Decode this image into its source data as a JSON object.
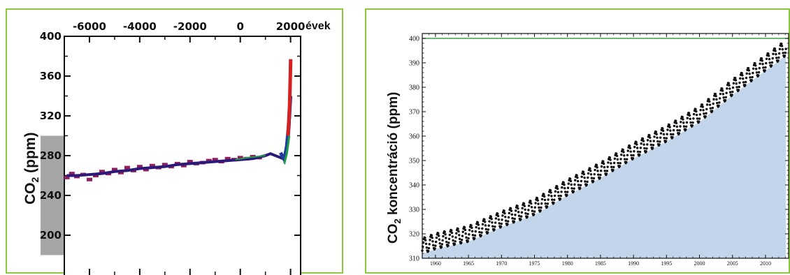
{
  "chart_data": [
    {
      "type": "line",
      "xlabel": "évek",
      "ylabel_main": "CO",
      "ylabel_sub": "2",
      "ylabel_rest": " (ppm)",
      "x_ticks": [
        "-6000",
        "-4000",
        "-2000",
        "0",
        "2000"
      ],
      "y_ticks": [
        "200",
        "240",
        "280",
        "320",
        "360",
        "400"
      ],
      "xlim": [
        -7000,
        2400
      ],
      "ylim": [
        160,
        400
      ],
      "natural_range_band": [
        180,
        300
      ],
      "colors": {
        "main_line": "#2b1a7a",
        "ice_core_markers": "#8e1e5e",
        "recent_red": "#d42020",
        "recent_green": "#1f9a4a",
        "recent_blue": "#1e3c9a",
        "band": "#a6a6a6"
      },
      "series": [
        {
          "x": [
            -6900,
            -6500,
            -6000,
            -5500,
            -5000,
            -4500,
            -4000,
            -3500,
            -3000,
            -2500,
            -2000,
            -1500,
            -1000,
            -500,
            0,
            500,
            1000,
            1200,
            1500,
            1700,
            1800,
            1850,
            1900,
            1950,
            1975,
            2000
          ],
          "values": [
            260,
            260,
            261,
            262,
            264,
            265,
            267,
            268,
            269,
            271,
            272,
            273,
            274,
            275,
            276,
            277,
            280,
            282,
            279,
            277,
            280,
            285,
            295,
            311,
            331,
            370
          ]
        }
      ],
      "ice_core_points": {
        "x": [
          -6900,
          -6700,
          -6500,
          -6250,
          -6000,
          -5750,
          -5500,
          -5250,
          -5000,
          -4750,
          -4500,
          -4250,
          -4000,
          -3750,
          -3500,
          -3250,
          -3000,
          -2750,
          -2500,
          -2250,
          -2000,
          -1750,
          -1500,
          -1250,
          -1000,
          -750,
          -500,
          -250,
          0,
          250,
          500,
          750
        ],
        "values": [
          258,
          262,
          259,
          261,
          256,
          260,
          264,
          262,
          266,
          263,
          268,
          265,
          269,
          266,
          270,
          268,
          271,
          269,
          272,
          270,
          274,
          272,
          273,
          275,
          276,
          274,
          277,
          276,
          278,
          277,
          279,
          278
        ]
      }
    },
    {
      "type": "area",
      "ylabel_main": "CO",
      "ylabel_sub": "2",
      "ylabel_rest": " koncentráció (ppm)",
      "x_ticks": [
        "1960",
        "1965",
        "1970",
        "1975",
        "1980",
        "1985",
        "1990",
        "1995",
        "2000",
        "2005",
        "2010"
      ],
      "y_ticks": [
        "310",
        "320",
        "330",
        "340",
        "350",
        "360",
        "370",
        "380",
        "390",
        "400"
      ],
      "xlim": [
        1958,
        2013.5
      ],
      "ylim": [
        310,
        402
      ],
      "reference_line": 400,
      "colors": {
        "area_fill": "#c2d5ea",
        "points": "#111111",
        "reference_line": "#3aa040"
      },
      "series": [
        {
          "name": "",
          "x": [
            1958,
            1960,
            1965,
            1970,
            1975,
            1980,
            1985,
            1990,
            1995,
            2000,
            2005,
            2010,
            2013
          ],
          "values": [
            315,
            317,
            320,
            326,
            331,
            339,
            346,
            354,
            361,
            369,
            380,
            390,
            396
          ]
        }
      ],
      "seasonal_amplitude_ppm": 3.2
    }
  ]
}
